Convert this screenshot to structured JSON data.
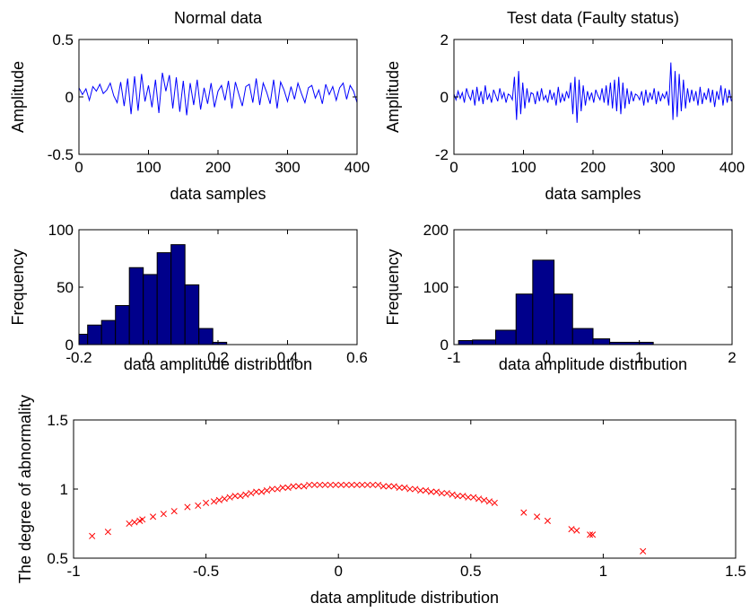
{
  "chart_data": [
    {
      "id": "normal",
      "type": "line",
      "title": "Normal data",
      "xlabel": "data samples",
      "ylabel": "Amplitude",
      "xlim": [
        0,
        400
      ],
      "ylim": [
        -0.5,
        0.5
      ],
      "xticks": [
        "0",
        "100",
        "200",
        "300",
        "400"
      ],
      "yticks": [
        "-0.5",
        "0",
        "0.5"
      ],
      "grid": false,
      "series": [
        {
          "color": "#0000ff",
          "x_start": 0,
          "x_step": 5,
          "y": [
            0.08,
            0.02,
            0.07,
            -0.03,
            0.09,
            0.05,
            0.11,
            0.03,
            0.06,
            0.12,
            0.01,
            -0.05,
            0.13,
            -0.08,
            0.16,
            -0.15,
            0.18,
            -0.12,
            0.2,
            -0.04,
            0.1,
            -0.09,
            0.15,
            -0.14,
            0.21,
            0.05,
            0.19,
            -0.1,
            0.17,
            -0.13,
            0.14,
            -0.16,
            0.12,
            -0.07,
            0.15,
            -0.11,
            0.08,
            -0.06,
            0.12,
            -0.09,
            0.05,
            0.1,
            -0.03,
            0.14,
            -0.1,
            0.13,
            0.02,
            -0.08,
            0.09,
            0.11,
            -0.05,
            0.16,
            -0.07,
            0.12,
            0.04,
            -0.06,
            0.15,
            -0.1,
            0.13,
            0.06,
            -0.04,
            0.09,
            -0.02,
            0.12,
            0.03,
            -0.05,
            0.08,
            0.1,
            -0.01,
            0.06,
            -0.06,
            0.11,
            0.02,
            0.09,
            -0.03,
            0.08,
            0.12,
            -0.02,
            0.1,
            0.05,
            -0.05
          ]
        }
      ]
    },
    {
      "id": "test",
      "type": "line",
      "title": "Test data (Faulty status)",
      "xlabel": "data samples",
      "ylabel": "Amplitude",
      "xlim": [
        0,
        400
      ],
      "ylim": [
        -2,
        2
      ],
      "xticks": [
        "0",
        "100",
        "200",
        "300",
        "400"
      ],
      "yticks": [
        "-2",
        "0",
        "2"
      ],
      "grid": false,
      "series": [
        {
          "color": "#0000ff",
          "x_start": 0,
          "x_step": 3,
          "y": [
            0.1,
            -0.1,
            0.2,
            -0.05,
            0.15,
            -0.2,
            0.3,
            0.05,
            -0.1,
            0.25,
            -0.3,
            0.35,
            -0.15,
            0.2,
            -0.25,
            0.4,
            -0.1,
            0.1,
            -0.2,
            0.25,
            0.05,
            -0.15,
            0.3,
            -0.05,
            0.15,
            -0.2,
            0.1,
            0.05,
            -0.1,
            0.7,
            -0.8,
            0.9,
            -0.6,
            0.5,
            -0.4,
            0.3,
            -0.2,
            0.15,
            0.1,
            -0.25,
            0.2,
            -0.15,
            0.3,
            -0.1,
            0.05,
            -0.2,
            0.25,
            -0.1,
            0.15,
            -0.3,
            0.35,
            -0.2,
            0.1,
            -0.15,
            0.2,
            -0.05,
            0.5,
            -0.6,
            0.7,
            -0.9,
            0.6,
            -0.5,
            0.4,
            -0.3,
            0.2,
            -0.1,
            0.15,
            -0.2,
            0.25,
            0.05,
            -0.1,
            0.3,
            -0.2,
            0.4,
            -0.3,
            0.5,
            -0.4,
            0.6,
            -0.5,
            0.7,
            -0.6,
            0.5,
            -0.4,
            0.3,
            -0.25,
            0.2,
            -0.15,
            0.1,
            0.05,
            -0.1,
            0.2,
            -0.3,
            0.25,
            -0.2,
            0.15,
            -0.1,
            0.3,
            -0.25,
            0.2,
            -0.15,
            0.1,
            -0.05,
            0.2,
            -0.3,
            1.2,
            -0.8,
            0.9,
            -0.7,
            0.8,
            -0.5,
            0.6,
            -0.4,
            0.3,
            -0.2,
            0.25,
            -0.15,
            0.2,
            -0.3,
            0.35,
            -0.25,
            0.15,
            -0.1,
            0.3,
            -0.2,
            0.25,
            -0.35,
            0.2,
            -0.1,
            0.4,
            -0.3,
            0.3,
            -0.2,
            0.25,
            -0.15
          ]
        }
      ]
    },
    {
      "id": "hist_normal",
      "type": "bar",
      "xlabel": "data amplitude distribution",
      "ylabel": "Frequency",
      "xlim": [
        -0.2,
        0.6
      ],
      "ylim": [
        0,
        100
      ],
      "xticks": [
        "-0.2",
        "0",
        "0.2",
        "0.4",
        "0.6"
      ],
      "yticks": [
        "0",
        "50",
        "100"
      ],
      "grid": false,
      "bar_color": "#00008b",
      "bins": [
        {
          "x0": -0.2,
          "x1": -0.175,
          "value": 9
        },
        {
          "x0": -0.175,
          "x1": -0.135,
          "value": 17
        },
        {
          "x0": -0.135,
          "x1": -0.095,
          "value": 21
        },
        {
          "x0": -0.095,
          "x1": -0.055,
          "value": 34
        },
        {
          "x0": -0.055,
          "x1": -0.015,
          "value": 67
        },
        {
          "x0": -0.015,
          "x1": 0.025,
          "value": 61
        },
        {
          "x0": 0.025,
          "x1": 0.065,
          "value": 80
        },
        {
          "x0": 0.065,
          "x1": 0.105,
          "value": 87
        },
        {
          "x0": 0.105,
          "x1": 0.145,
          "value": 52
        },
        {
          "x0": 0.145,
          "x1": 0.185,
          "value": 14
        },
        {
          "x0": 0.185,
          "x1": 0.225,
          "value": 2
        }
      ]
    },
    {
      "id": "hist_test",
      "type": "bar",
      "xlabel": "data amplitude distribution",
      "ylabel": "Frequency",
      "xlim": [
        -1,
        2
      ],
      "ylim": [
        0,
        200
      ],
      "xticks": [
        "-1",
        "0",
        "1",
        "2"
      ],
      "yticks": [
        "0",
        "100",
        "200"
      ],
      "grid": false,
      "bar_color": "#00008b",
      "bins": [
        {
          "x0": -0.95,
          "x1": -0.8,
          "value": 7
        },
        {
          "x0": -0.8,
          "x1": -0.55,
          "value": 8
        },
        {
          "x0": -0.55,
          "x1": -0.33,
          "value": 25
        },
        {
          "x0": -0.33,
          "x1": -0.15,
          "value": 88
        },
        {
          "x0": -0.15,
          "x1": 0.08,
          "value": 147
        },
        {
          "x0": 0.08,
          "x1": 0.28,
          "value": 88
        },
        {
          "x0": 0.28,
          "x1": 0.5,
          "value": 28
        },
        {
          "x0": 0.5,
          "x1": 0.68,
          "value": 10
        },
        {
          "x0": 0.68,
          "x1": 1.15,
          "value": 4
        }
      ]
    },
    {
      "id": "abnormality",
      "type": "scatter",
      "xlabel": "data amplitude distribution",
      "ylabel": "The degree of abnormality",
      "xlim": [
        -1,
        1.5
      ],
      "ylim": [
        0.5,
        1.5
      ],
      "xticks": [
        "-1",
        "-0.5",
        "0",
        "0.5",
        "1",
        "1.5"
      ],
      "yticks": [
        "0.5",
        "1",
        "1.5"
      ],
      "grid": false,
      "marker": "x",
      "marker_color": "#ff0000",
      "points": [
        [
          -0.93,
          0.66
        ],
        [
          -0.87,
          0.69
        ],
        [
          -0.79,
          0.75
        ],
        [
          -0.77,
          0.76
        ],
        [
          -0.75,
          0.77
        ],
        [
          -0.74,
          0.78
        ],
        [
          -0.7,
          0.8
        ],
        [
          -0.66,
          0.82
        ],
        [
          -0.62,
          0.84
        ],
        [
          -0.57,
          0.87
        ],
        [
          -0.53,
          0.88
        ],
        [
          -0.5,
          0.9
        ],
        [
          -0.47,
          0.91
        ],
        [
          -0.45,
          0.92
        ],
        [
          -0.43,
          0.93
        ],
        [
          -0.41,
          0.94
        ],
        [
          -0.39,
          0.95
        ],
        [
          -0.37,
          0.95
        ],
        [
          -0.35,
          0.96
        ],
        [
          -0.33,
          0.97
        ],
        [
          -0.31,
          0.98
        ],
        [
          -0.29,
          0.98
        ],
        [
          -0.27,
          0.99
        ],
        [
          -0.25,
          1.0
        ],
        [
          -0.23,
          1.0
        ],
        [
          -0.21,
          1.01
        ],
        [
          -0.19,
          1.01
        ],
        [
          -0.17,
          1.02
        ],
        [
          -0.15,
          1.02
        ],
        [
          -0.13,
          1.02
        ],
        [
          -0.11,
          1.03
        ],
        [
          -0.09,
          1.03
        ],
        [
          -0.07,
          1.03
        ],
        [
          -0.05,
          1.03
        ],
        [
          -0.03,
          1.03
        ],
        [
          -0.01,
          1.03
        ],
        [
          0.01,
          1.03
        ],
        [
          0.03,
          1.03
        ],
        [
          0.05,
          1.03
        ],
        [
          0.07,
          1.03
        ],
        [
          0.09,
          1.03
        ],
        [
          0.11,
          1.03
        ],
        [
          0.13,
          1.03
        ],
        [
          0.15,
          1.03
        ],
        [
          0.17,
          1.02
        ],
        [
          0.19,
          1.02
        ],
        [
          0.21,
          1.02
        ],
        [
          0.23,
          1.01
        ],
        [
          0.25,
          1.01
        ],
        [
          0.27,
          1.0
        ],
        [
          0.29,
          1.0
        ],
        [
          0.31,
          0.99
        ],
        [
          0.33,
          0.99
        ],
        [
          0.35,
          0.98
        ],
        [
          0.37,
          0.98
        ],
        [
          0.39,
          0.97
        ],
        [
          0.41,
          0.97
        ],
        [
          0.43,
          0.96
        ],
        [
          0.45,
          0.95
        ],
        [
          0.47,
          0.95
        ],
        [
          0.49,
          0.94
        ],
        [
          0.51,
          0.94
        ],
        [
          0.53,
          0.93
        ],
        [
          0.55,
          0.92
        ],
        [
          0.57,
          0.91
        ],
        [
          0.59,
          0.9
        ],
        [
          0.7,
          0.83
        ],
        [
          0.75,
          0.8
        ],
        [
          0.79,
          0.77
        ],
        [
          0.88,
          0.71
        ],
        [
          0.9,
          0.7
        ],
        [
          0.95,
          0.67
        ],
        [
          0.96,
          0.67
        ],
        [
          1.15,
          0.55
        ]
      ]
    }
  ]
}
